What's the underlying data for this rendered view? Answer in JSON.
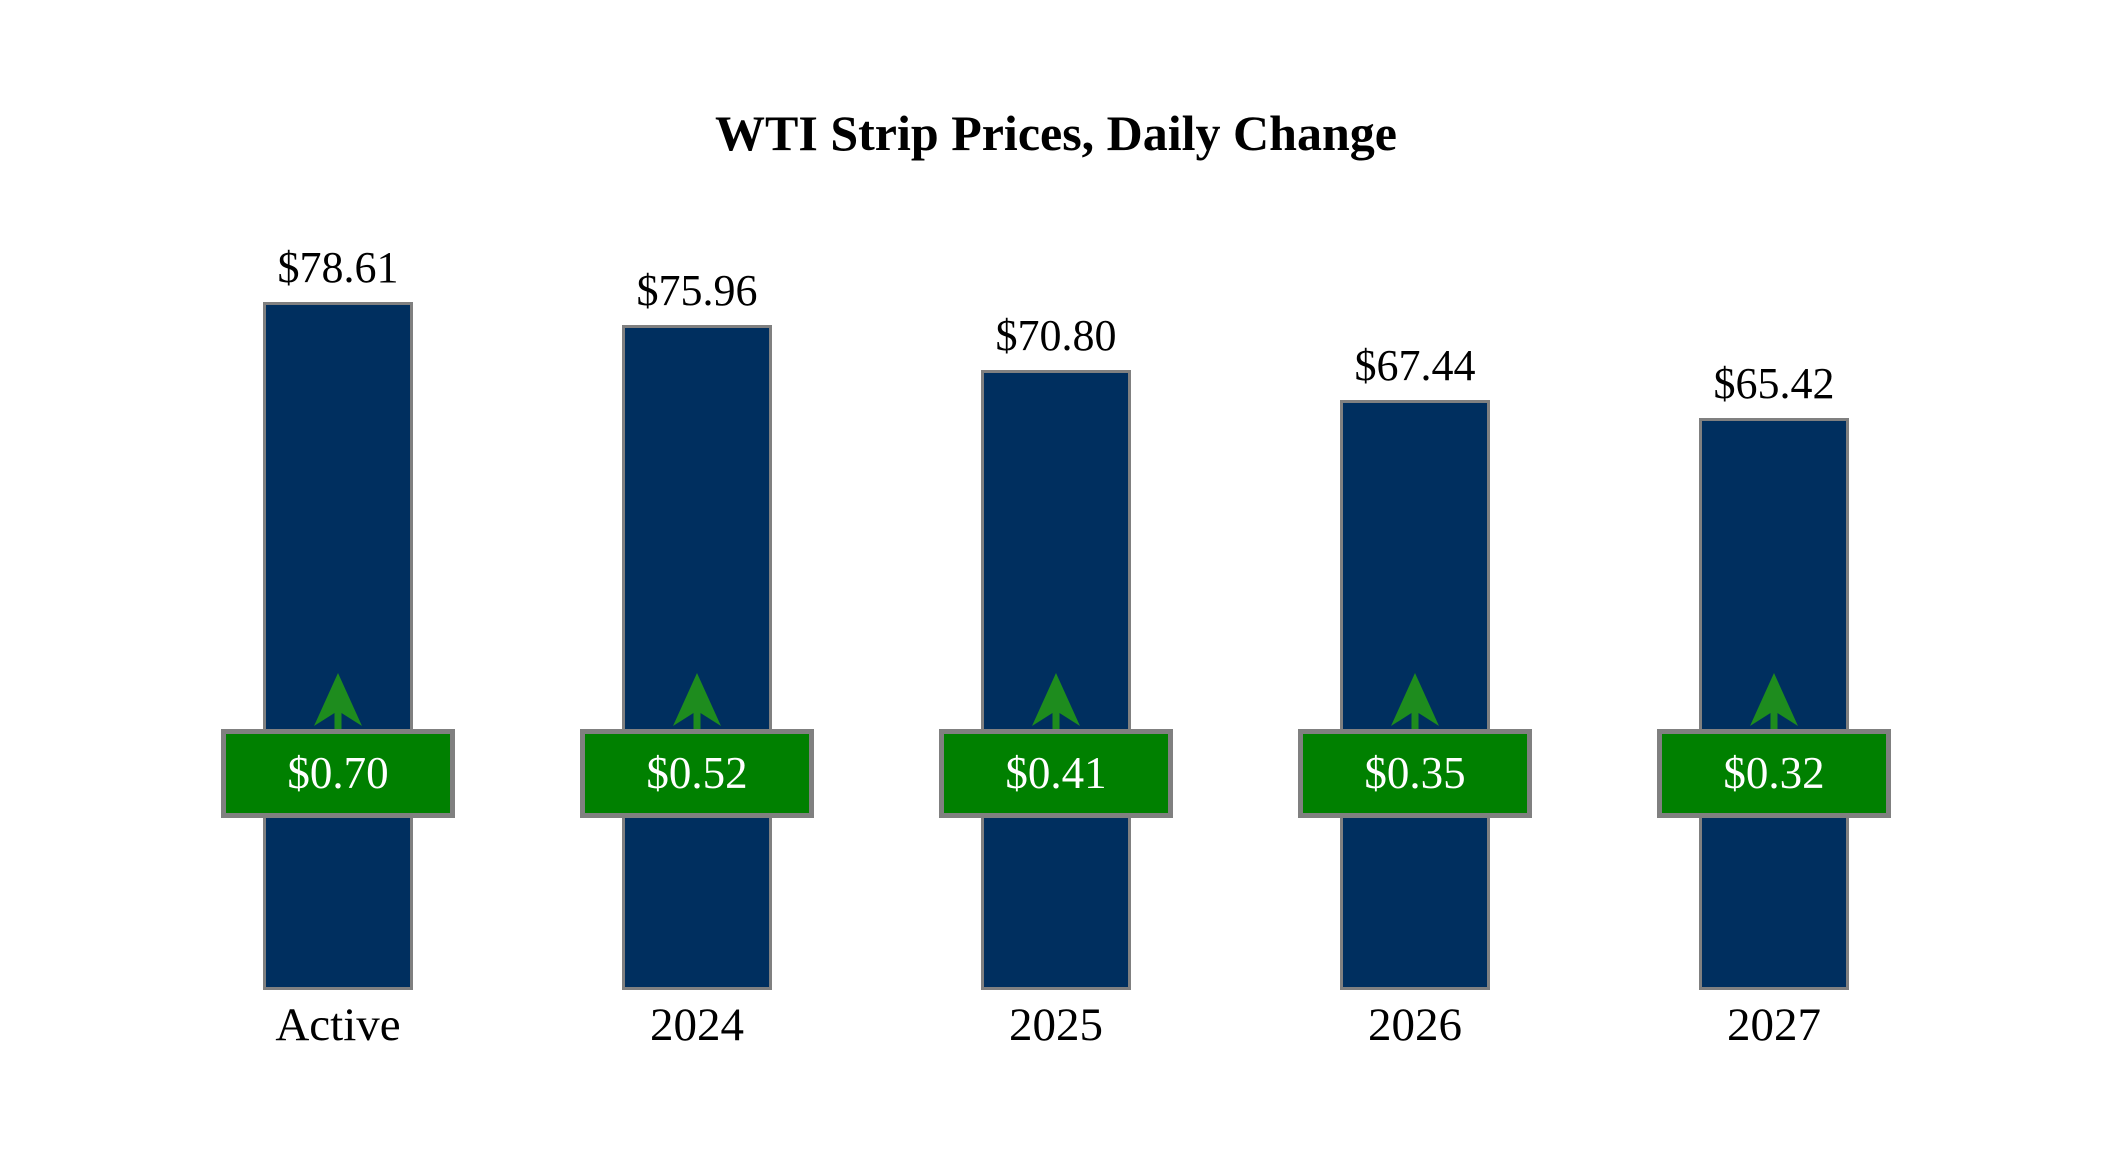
{
  "colors": {
    "background": "#FFFFFF",
    "title_text": "#000000",
    "label_text": "#000000",
    "bar_fill": "#002F5F",
    "bar_border": "#808080",
    "badge_fill": "#008000",
    "badge_border": "#808080",
    "badge_text": "#FFFFFF",
    "arrow_green": "#1E8C1E"
  },
  "icons": {
    "up_arrow": "up-arrow-icon"
  },
  "chart_data": {
    "type": "bar",
    "title": "WTI Strip Prices, Daily Change",
    "categories": [
      "Active",
      "2024",
      "2025",
      "2026",
      "2027"
    ],
    "series": [
      {
        "name": "Strip Price",
        "values": [
          78.61,
          75.96,
          70.8,
          67.44,
          65.42
        ],
        "labels": [
          "$78.61",
          "$75.96",
          "$70.80",
          "$67.44",
          "$65.42"
        ],
        "color": "#002F5F"
      },
      {
        "name": "Daily Change",
        "values": [
          0.7,
          0.52,
          0.41,
          0.35,
          0.32
        ],
        "labels": [
          "$0.70",
          "$0.52",
          "$0.41",
          "$0.35",
          "$0.32"
        ],
        "direction": "up",
        "color": "#008000"
      }
    ],
    "xlabel": "",
    "ylabel": "",
    "baseline": 0,
    "ylim": [
      0,
      113
    ],
    "grid": false,
    "axes_visible": false,
    "legend": "none"
  }
}
